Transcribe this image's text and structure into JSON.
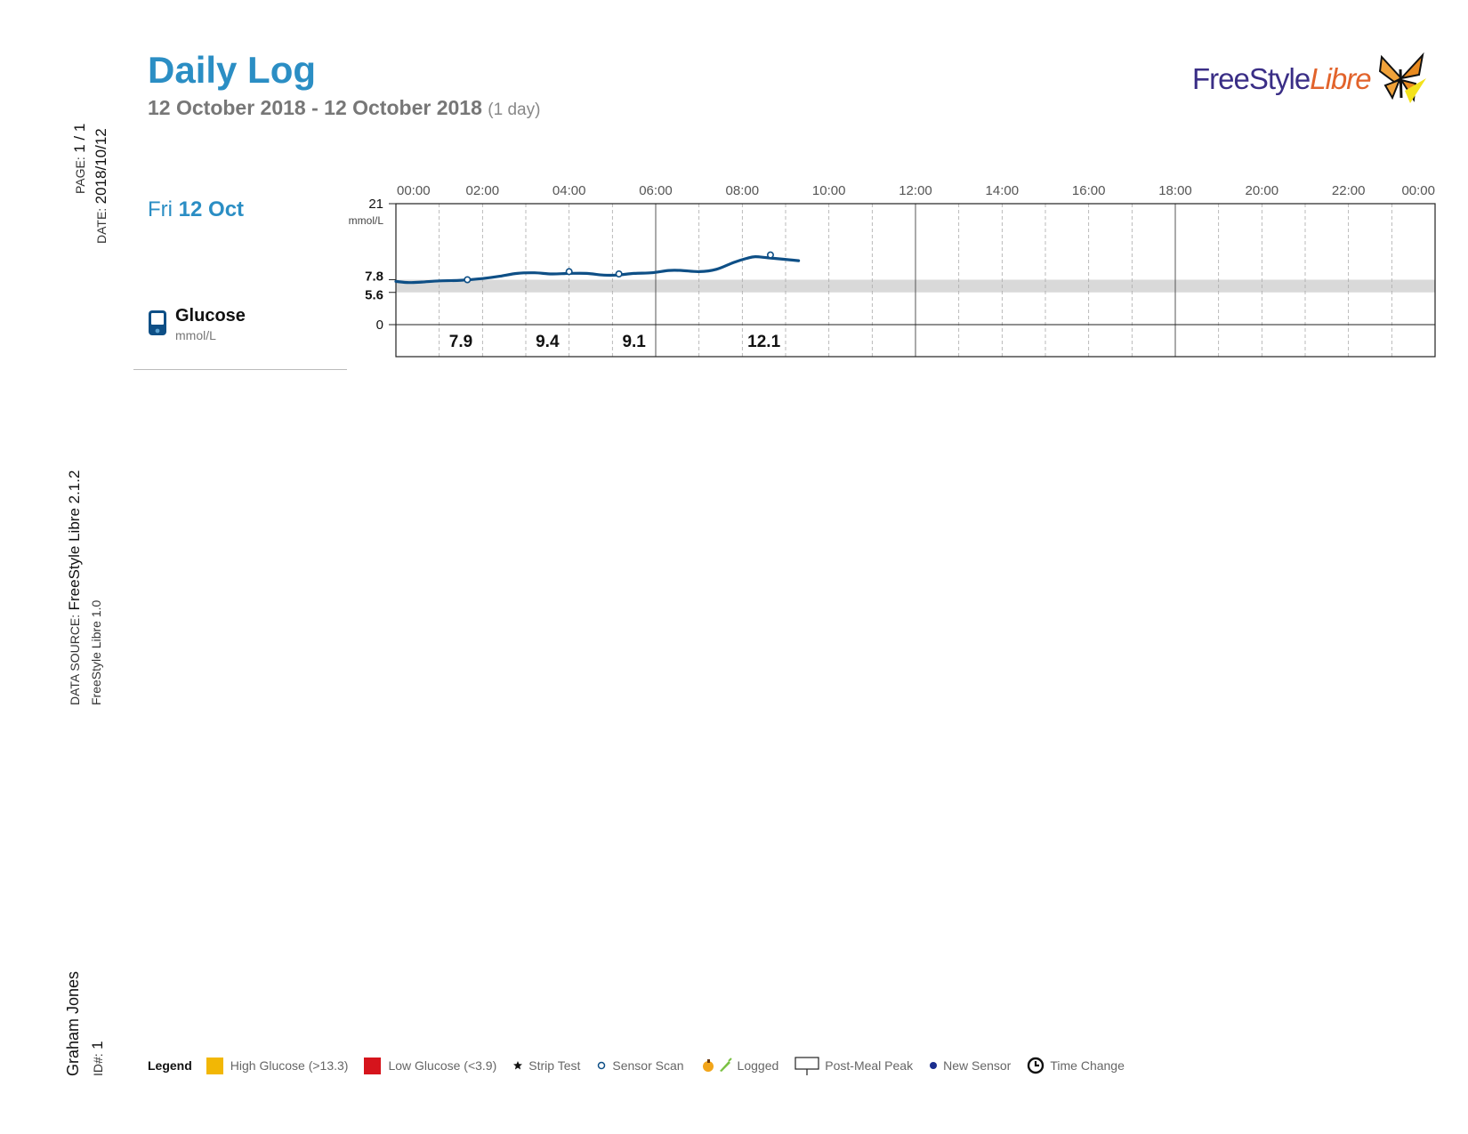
{
  "header": {
    "title": "Daily Log",
    "date_range": "12 October 2018 - 12 October 2018",
    "duration": "(1 day)",
    "logo_word1": "FreeStyle",
    "logo_word2": "Libre",
    "logo_icon": "butterfly-icon"
  },
  "side": {
    "page_label": "PAGE:",
    "page_value": "1 / 1",
    "date_label": "DATE:",
    "date_value": "2018/10/12",
    "source_label": "DATA SOURCE:",
    "source_value": "FreeStyle Libre 2.1.2",
    "source_device": "FreeStyle Libre 1.0",
    "patient_name": "Graham Jones",
    "id_label": "ID#:",
    "id_value": "1"
  },
  "day": {
    "weekday": "Fri",
    "date": "12 Oct"
  },
  "glucose_panel": {
    "label": "Glucose",
    "unit": "mmol/L",
    "icon": "glucose-meter-icon"
  },
  "chart_data": {
    "type": "line",
    "x_ticks": [
      "00:00",
      "02:00",
      "04:00",
      "06:00",
      "08:00",
      "10:00",
      "12:00",
      "14:00",
      "16:00",
      "18:00",
      "20:00",
      "22:00",
      "00:00"
    ],
    "xlim_hours": [
      0,
      24
    ],
    "ylim": [
      0,
      21
    ],
    "y_unit_label": "mmol/L",
    "y_ticks": [
      {
        "value": 21,
        "label": "21",
        "bold": false
      },
      {
        "value": 7.8,
        "label": "7.8",
        "bold": true
      },
      {
        "value": 5.6,
        "label": "5.6",
        "bold": true
      },
      {
        "value": 0,
        "label": "0",
        "bold": false
      }
    ],
    "target_range": [
      5.6,
      7.8
    ],
    "sensor_line": [
      [
        0.0,
        7.5
      ],
      [
        0.3,
        7.3
      ],
      [
        0.6,
        7.4
      ],
      [
        1.0,
        7.6
      ],
      [
        1.5,
        7.7
      ],
      [
        2.0,
        8.0
      ],
      [
        2.4,
        8.4
      ],
      [
        2.8,
        8.9
      ],
      [
        3.2,
        9.0
      ],
      [
        3.6,
        8.8
      ],
      [
        4.0,
        8.9
      ],
      [
        4.4,
        8.9
      ],
      [
        4.8,
        8.6
      ],
      [
        5.1,
        8.6
      ],
      [
        5.5,
        8.9
      ],
      [
        5.9,
        9.0
      ],
      [
        6.3,
        9.4
      ],
      [
        6.6,
        9.4
      ],
      [
        7.0,
        9.2
      ],
      [
        7.4,
        9.6
      ],
      [
        7.8,
        10.8
      ],
      [
        8.1,
        11.5
      ],
      [
        8.3,
        11.8
      ],
      [
        8.6,
        11.6
      ],
      [
        9.3,
        11.1
      ]
    ],
    "sensor_scans": [
      [
        1.65,
        7.8
      ],
      [
        4.0,
        9.2
      ],
      [
        5.15,
        8.8
      ],
      [
        8.65,
        12.1
      ]
    ],
    "hourly_values": [
      {
        "hour": 1.5,
        "label": "7.9"
      },
      {
        "hour": 3.5,
        "label": "9.4"
      },
      {
        "hour": 5.5,
        "label": "9.1"
      },
      {
        "hour": 8.5,
        "label": "12.1"
      }
    ],
    "grid": true
  },
  "legend": {
    "title": "Legend",
    "items": [
      {
        "label": "High Glucose (>13.3)",
        "kind": "swatch",
        "color": "#f2b705",
        "icon": "high-glucose-swatch"
      },
      {
        "label": "Low Glucose (<3.9)",
        "kind": "swatch",
        "color": "#d6141c",
        "icon": "low-glucose-swatch"
      },
      {
        "label": "Strip Test",
        "kind": "symbol",
        "icon": "strip-test-icon"
      },
      {
        "label": "Sensor Scan",
        "kind": "symbol",
        "icon": "sensor-scan-icon"
      },
      {
        "label": "Logged",
        "kind": "symbol",
        "icon": "logged-food-insulin-icon"
      },
      {
        "label": "Post-Meal Peak",
        "kind": "symbol",
        "icon": "post-meal-peak-icon"
      },
      {
        "label": "New Sensor",
        "kind": "symbol",
        "icon": "new-sensor-icon"
      },
      {
        "label": "Time Change",
        "kind": "symbol",
        "icon": "time-change-icon"
      }
    ]
  },
  "colors": {
    "title_blue": "#2b8ec4",
    "line_blue": "#0e4f86",
    "target_band": "#d9d9d9",
    "logo_purple": "#3a2e86",
    "logo_orange": "#e2632b"
  }
}
